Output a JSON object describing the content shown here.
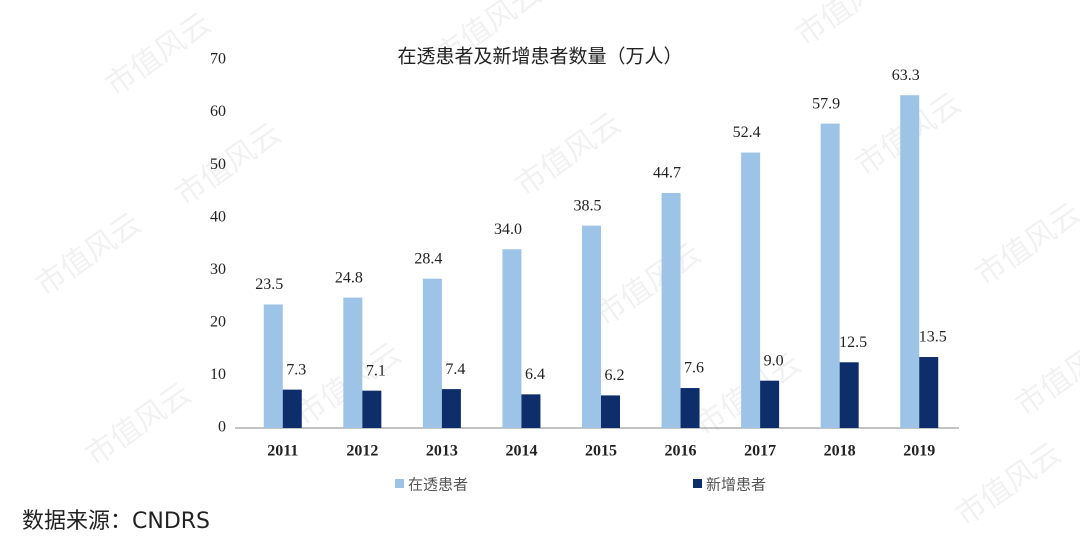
{
  "chart_data": {
    "type": "bar",
    "title": "在透患者及新增患者数量（万人）",
    "categories": [
      "2011",
      "2012",
      "2013",
      "2014",
      "2015",
      "2016",
      "2017",
      "2018",
      "2019"
    ],
    "series": [
      {
        "name": "在透患者",
        "color": "#9dc3e6",
        "values": [
          23.5,
          24.8,
          28.4,
          34.0,
          38.5,
          44.7,
          52.4,
          57.9,
          63.3
        ],
        "value_labels": [
          "23.5",
          "24.8",
          "28.4",
          "34.0",
          "38.5",
          "44.7",
          "52.4",
          "57.9",
          "63.3"
        ]
      },
      {
        "name": "新增患者",
        "color": "#0d2d6b",
        "values": [
          7.3,
          7.1,
          7.4,
          6.4,
          6.2,
          7.6,
          9.0,
          12.5,
          13.5
        ],
        "value_labels": [
          "7.3",
          "7.1",
          "7.4",
          "6.4",
          "6.2",
          "7.6",
          "9.0",
          "12.5",
          "13.5"
        ]
      }
    ],
    "ylim": [
      0,
      70
    ],
    "yticks": [
      0,
      10,
      20,
      30,
      40,
      50,
      60,
      70
    ],
    "grid": false,
    "legend": "bottom",
    "source": "数据来源：CNDRS",
    "watermark": "市值风云"
  }
}
